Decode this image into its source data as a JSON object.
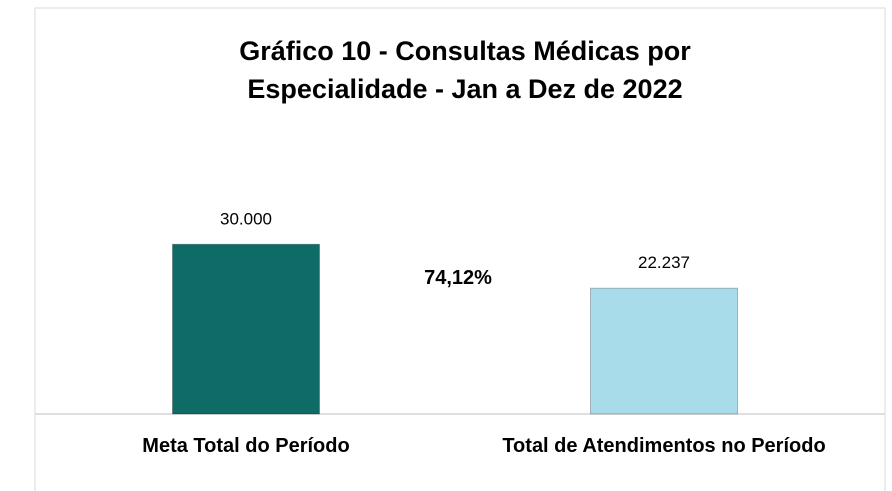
{
  "chart_data": {
    "type": "bar",
    "title": "Gráfico 10 - Consultas Médicas por Especialidade - Jan a Dez de 2022",
    "categories": [
      "Meta Total do Período",
      "Total de Atendimentos no Período"
    ],
    "values": [
      30000,
      22237
    ],
    "value_labels": [
      "30.000",
      "22.237"
    ],
    "colors": [
      "#0f6b66",
      "#a9dcea"
    ],
    "annotation": "74,12%",
    "ylim": [
      0,
      35000
    ]
  }
}
